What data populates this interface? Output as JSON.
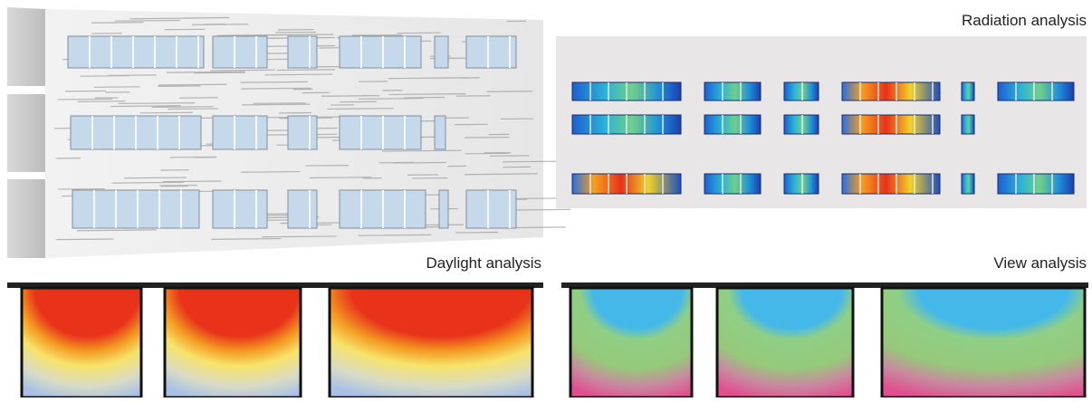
{
  "labels": {
    "radiation": "Radiation analysis",
    "daylight": "Daylight analysis",
    "view": "View analysis"
  }
}
